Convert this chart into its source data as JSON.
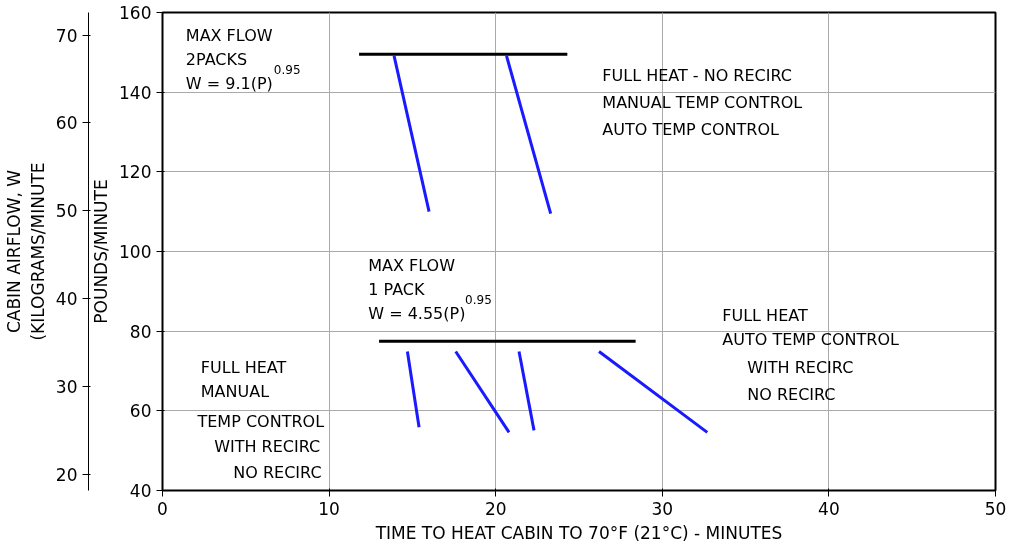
{
  "chart_data": {
    "type": "line",
    "xlabel": "TIME TO HEAT CABIN TO 70°F (21°C) - MINUTES",
    "ylabel": "POUNDS/MINUTE",
    "y2label": "CABIN AIRFLOW, W\n(KILOGRAMS/MINUTE",
    "xlim": [
      0,
      50
    ],
    "xticks": [
      0,
      10,
      20,
      30,
      40,
      50
    ],
    "ylim": [
      40,
      160
    ],
    "yticks": [
      40,
      60,
      80,
      100,
      120,
      140,
      160
    ],
    "y2lim": [
      18.14,
      72.57
    ],
    "y2ticks": [
      20,
      30,
      40,
      50,
      60,
      70
    ],
    "grid": true,
    "series": [
      {
        "color": "#1a1aff",
        "x": [
          13.9,
          16.0
        ],
        "values": [
          149.1,
          110.0
        ]
      },
      {
        "color": "#1a1aff",
        "x": [
          20.65,
          23.3
        ],
        "values": [
          149.1,
          109.5
        ]
      },
      {
        "color": "#1a1aff",
        "x": [
          14.7,
          15.4
        ],
        "values": [
          74.9,
          55.9
        ]
      },
      {
        "color": "#1a1aff",
        "x": [
          17.6,
          20.8
        ],
        "values": [
          74.9,
          54.6
        ]
      },
      {
        "color": "#1a1aff",
        "x": [
          21.4,
          22.3
        ],
        "values": [
          74.9,
          55.1
        ]
      },
      {
        "color": "#1a1aff",
        "x": [
          26.2,
          32.7
        ],
        "values": [
          74.9,
          54.6
        ]
      },
      {
        "color": "#000000",
        "x": [
          11.8,
          24.3
        ],
        "values": [
          149.5,
          149.5
        ]
      },
      {
        "color": "#000000",
        "x": [
          13.0,
          28.4
        ],
        "values": [
          77.5,
          77.5
        ]
      }
    ],
    "annotations": [
      "MAX FLOW\n2PACKS\nW = 9.1(P)$^{0.95}$",
      "FULL HEAT - NO RECIRC",
      "MANUAL TEMP CONTROL",
      "AUTO TEMP CONTROL",
      "MAX FLOW\n1 PACK\nW = 4.55(P)$^{0.95}$",
      "FULL HEAT\nAUTO TEMP CONTROL",
      "WITH RECIRC",
      "NO RECIRC",
      "FULL HEAT\nMANUAL",
      "TEMP CONTROL",
      "WITH RECIRC",
      "NO RECIRC"
    ]
  }
}
